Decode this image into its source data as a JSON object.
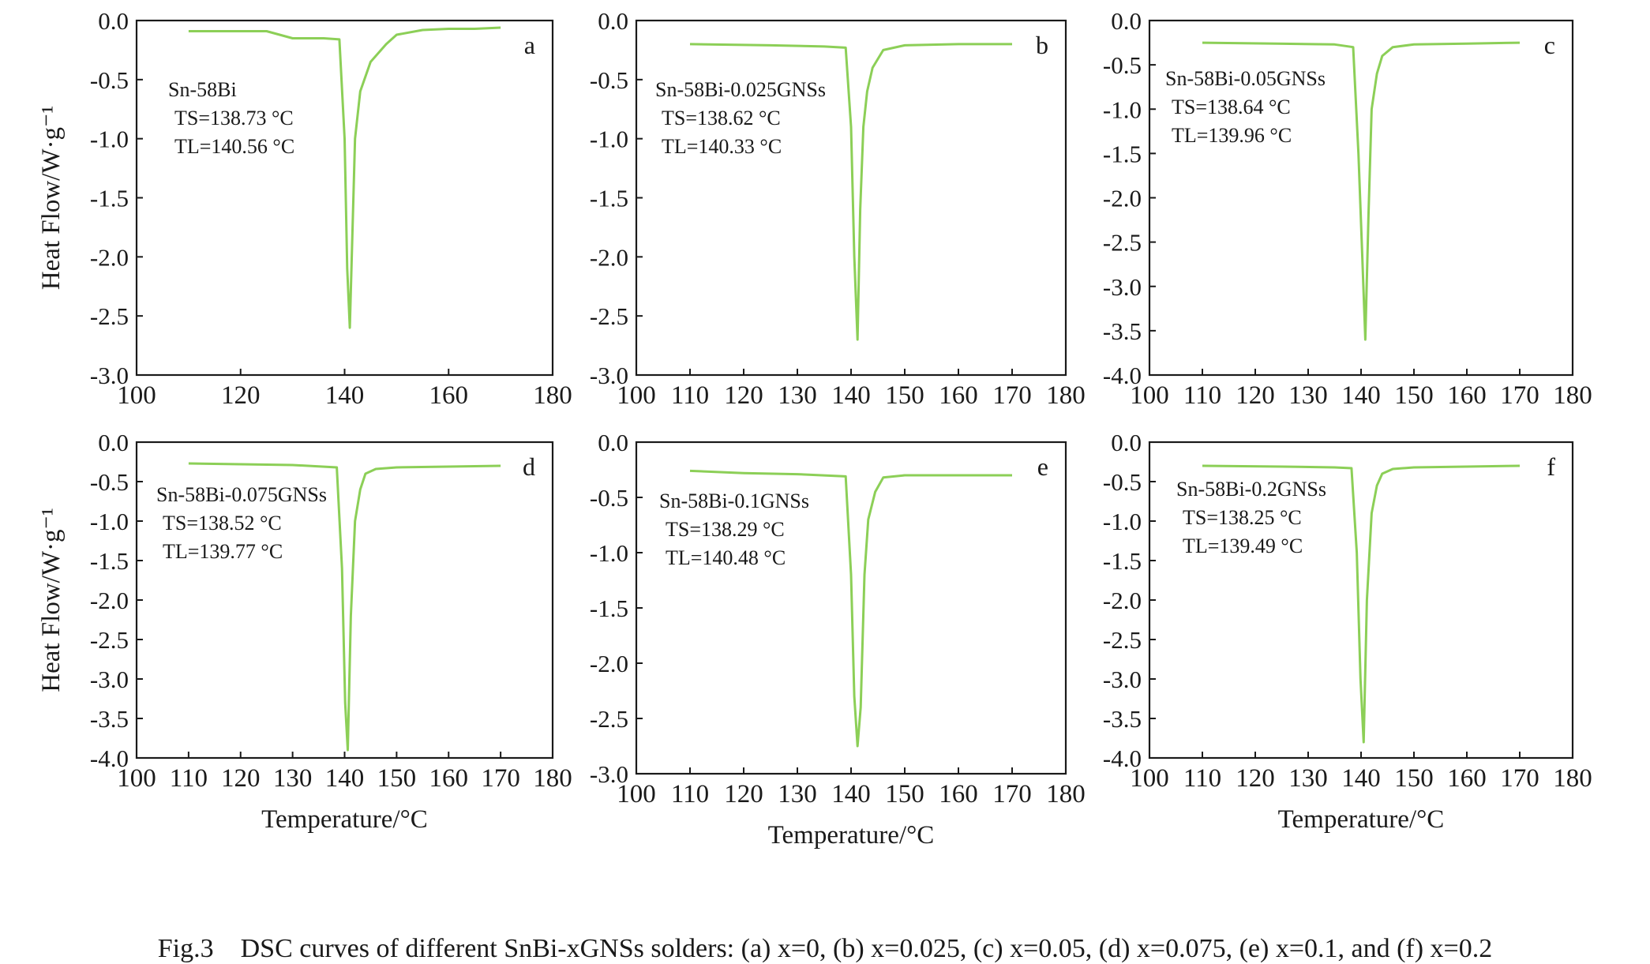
{
  "caption": "Fig.3    DSC curves of different SnBi-xGNSs solders: (a) x=0, (b) x=0.025, (c) x=0.05, (d) x=0.075, (e) x=0.1, and (f) x=0.2",
  "colors": {
    "curve": "#8ccf57",
    "axis": "#1a1a1a"
  },
  "chart_data": [
    {
      "panel": "a",
      "type": "line",
      "ylabel": "Heat Flow/W·g⁻¹",
      "xlabel": "",
      "xlim": [
        100,
        180
      ],
      "xticks": [
        100,
        120,
        140,
        160,
        180
      ],
      "ylim": [
        -3.0,
        0.0
      ],
      "yticks": [
        0.0,
        -0.5,
        -1.0,
        -1.5,
        -2.0,
        -2.5,
        -3.0
      ],
      "legend": [
        "Sn-58Bi",
        "TS=138.73 °C",
        "TL=140.56 °C"
      ],
      "series": [
        {
          "x": [
            110,
            125,
            130,
            136,
            139,
            140,
            140.5,
            141,
            141.5,
            142,
            143,
            145,
            148,
            150,
            155,
            160,
            165,
            170
          ],
          "y": [
            -0.09,
            -0.09,
            -0.15,
            -0.15,
            -0.16,
            -1.0,
            -2.1,
            -2.6,
            -1.8,
            -1.0,
            -0.6,
            -0.35,
            -0.2,
            -0.12,
            -0.08,
            -0.07,
            -0.07,
            -0.06
          ]
        }
      ]
    },
    {
      "panel": "b",
      "type": "line",
      "ylabel": "",
      "xlabel": "",
      "xlim": [
        100,
        180
      ],
      "xticks": [
        100,
        110,
        120,
        130,
        140,
        150,
        160,
        170,
        180
      ],
      "ylim": [
        -3.0,
        0.0
      ],
      "yticks": [
        0.0,
        -0.5,
        -1.0,
        -1.5,
        -2.0,
        -2.5,
        -3.0
      ],
      "legend": [
        "Sn-58Bi-0.025GNSs",
        "TS=138.62 °C",
        "TL=140.33 °C"
      ],
      "series": [
        {
          "x": [
            110,
            125,
            135,
            139,
            140,
            140.6,
            141.2,
            141.7,
            142.3,
            143,
            144,
            146,
            150,
            160,
            170
          ],
          "y": [
            -0.2,
            -0.21,
            -0.22,
            -0.23,
            -0.9,
            -2.0,
            -2.7,
            -1.6,
            -0.9,
            -0.6,
            -0.4,
            -0.25,
            -0.21,
            -0.2,
            -0.2
          ]
        }
      ]
    },
    {
      "panel": "c",
      "type": "line",
      "ylabel": "",
      "xlabel": "",
      "xlim": [
        100,
        180
      ],
      "xticks": [
        100,
        110,
        120,
        130,
        140,
        150,
        160,
        170,
        180
      ],
      "ylim": [
        -4.0,
        0.0
      ],
      "yticks": [
        0.0,
        -0.5,
        -1.0,
        -1.5,
        -2.0,
        -2.5,
        -3.0,
        -3.5,
        -4.0
      ],
      "legend": [
        "Sn-58Bi-0.05GNSs",
        "TS=138.64 °C",
        "TL=139.96 °C"
      ],
      "series": [
        {
          "x": [
            110,
            124,
            135,
            138.5,
            139.5,
            140.2,
            140.8,
            141.4,
            142,
            143,
            144,
            146,
            150,
            160,
            170
          ],
          "y": [
            -0.25,
            -0.26,
            -0.27,
            -0.3,
            -1.5,
            -2.6,
            -3.6,
            -2.2,
            -1.0,
            -0.6,
            -0.4,
            -0.3,
            -0.27,
            -0.26,
            -0.25
          ]
        }
      ]
    },
    {
      "panel": "d",
      "type": "line",
      "ylabel": "Heat Flow/W·g⁻¹",
      "xlabel": "Temperature/°C",
      "xlim": [
        100,
        180
      ],
      "xticks": [
        100,
        110,
        120,
        130,
        140,
        150,
        160,
        170,
        180
      ],
      "ylim": [
        -4.0,
        0.0
      ],
      "yticks": [
        0.0,
        -0.5,
        -1.0,
        -1.5,
        -2.0,
        -2.5,
        -3.0,
        -3.5,
        -4.0
      ],
      "legend": [
        "Sn-58Bi-0.075GNSs",
        "TS=138.52 °C",
        "TL=139.77 °C"
      ],
      "series": [
        {
          "x": [
            110,
            120,
            130,
            138.5,
            139.5,
            140.1,
            140.6,
            141.2,
            142,
            143,
            144,
            146,
            150,
            160,
            170
          ],
          "y": [
            -0.27,
            -0.28,
            -0.29,
            -0.32,
            -1.6,
            -3.3,
            -3.9,
            -2.2,
            -1.0,
            -0.6,
            -0.4,
            -0.34,
            -0.32,
            -0.31,
            -0.3
          ]
        }
      ]
    },
    {
      "panel": "e",
      "type": "line",
      "ylabel": "",
      "xlabel": "Temperature/°C",
      "xlim": [
        100,
        180
      ],
      "xticks": [
        100,
        110,
        120,
        130,
        140,
        150,
        160,
        170,
        180
      ],
      "ylim": [
        -3.0,
        0.0
      ],
      "yticks": [
        0.0,
        -0.5,
        -1.0,
        -1.5,
        -2.0,
        -2.5,
        -3.0
      ],
      "legend": [
        "Sn-58Bi-0.1GNSs",
        "TS=138.29 °C",
        "TL=140.48 °C"
      ],
      "series": [
        {
          "x": [
            110,
            120,
            130,
            139,
            140,
            140.6,
            141.2,
            141.8,
            142.5,
            143.2,
            144.5,
            146,
            150,
            160,
            170
          ],
          "y": [
            -0.26,
            -0.28,
            -0.29,
            -0.31,
            -1.2,
            -2.3,
            -2.75,
            -2.4,
            -1.2,
            -0.7,
            -0.45,
            -0.32,
            -0.3,
            -0.3,
            -0.3
          ]
        }
      ]
    },
    {
      "panel": "f",
      "type": "line",
      "ylabel": "",
      "xlabel": "Temperature/°C",
      "xlim": [
        100,
        180
      ],
      "xticks": [
        100,
        110,
        120,
        130,
        140,
        150,
        160,
        170,
        180
      ],
      "ylim": [
        -4.0,
        0.0
      ],
      "yticks": [
        0.0,
        -0.5,
        -1.0,
        -1.5,
        -2.0,
        -2.5,
        -3.0,
        -3.5,
        -4.0
      ],
      "legend": [
        "Sn-58Bi-0.2GNSs",
        "TS=138.25 °C",
        "TL=139.49 °C"
      ],
      "series": [
        {
          "x": [
            110,
            125,
            135,
            138.2,
            139.2,
            139.9,
            140.5,
            141.1,
            142,
            143,
            144,
            146,
            150,
            160,
            170
          ],
          "y": [
            -0.3,
            -0.31,
            -0.32,
            -0.33,
            -1.4,
            -3.0,
            -3.8,
            -2.0,
            -0.9,
            -0.55,
            -0.4,
            -0.34,
            -0.32,
            -0.31,
            -0.3
          ]
        }
      ]
    }
  ]
}
